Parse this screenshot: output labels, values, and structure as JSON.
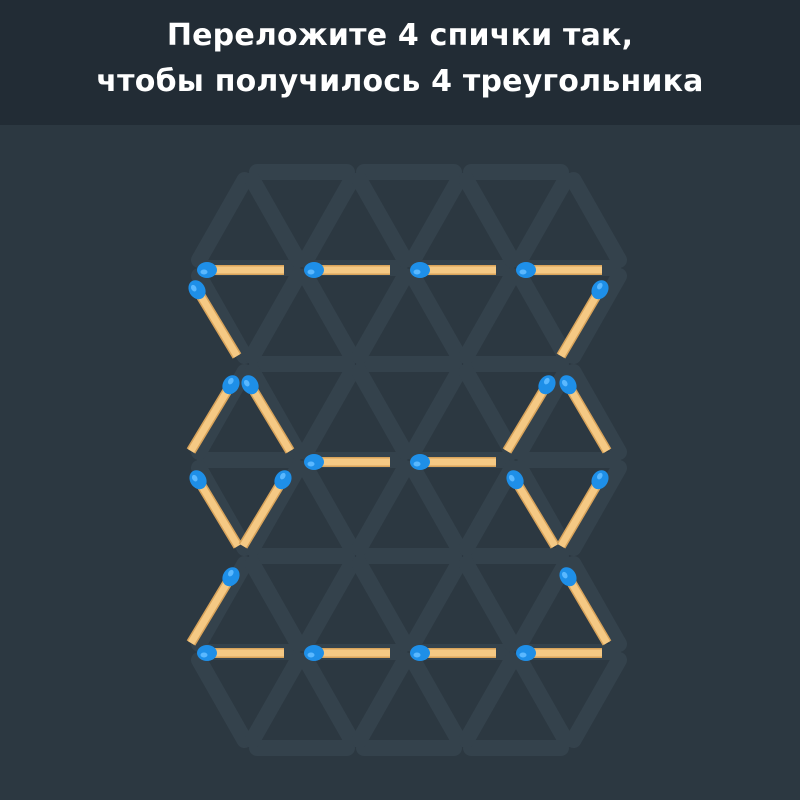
{
  "puzzle": {
    "title_line1": "Переложите 4 спички так,",
    "title_line2": "чтобы получилось 4 треугольника"
  },
  "colors": {
    "header_bg": "#222c35",
    "board_bg": "#2c3841",
    "ghost": "#34424c",
    "match_body": "#f5c984",
    "match_shade": "#d9a45b",
    "match_head": "#1e8fe8",
    "match_head_light": "#5ab8ff"
  }
}
